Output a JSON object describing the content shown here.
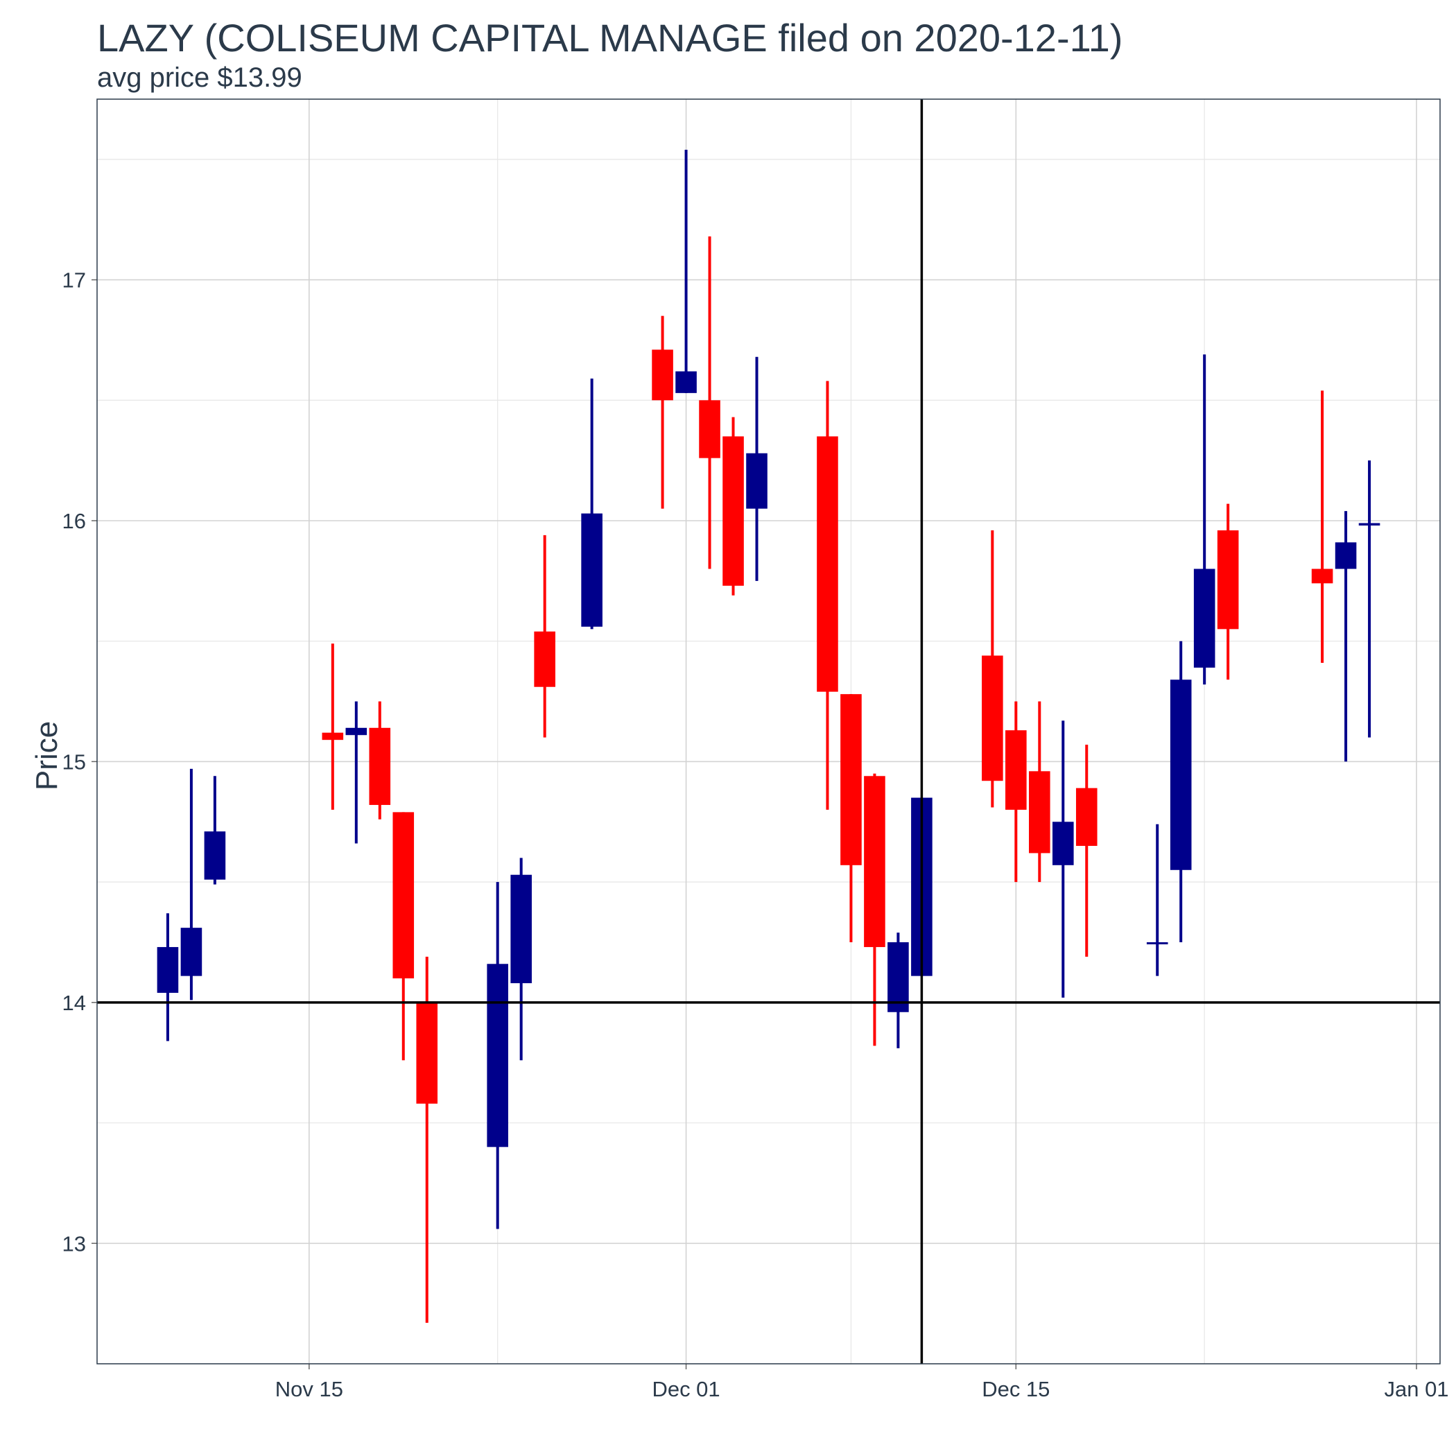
{
  "chart_data": {
    "type": "candlestick",
    "title": "LAZY (COLISEUM CAPITAL MANAGE filed on 2020-12-11)",
    "subtitle": "avg price $13.99",
    "ylabel": "Price",
    "xlabel": "",
    "ylim": [
      12.5,
      17.75
    ],
    "xlim": [
      "2020-11-06",
      "2021-01-02"
    ],
    "y_ticks": [
      13,
      14,
      15,
      16,
      17
    ],
    "x_ticks": [
      {
        "date": "2020-11-15",
        "label": "Nov 15"
      },
      {
        "date": "2020-12-01",
        "label": "Dec 01"
      },
      {
        "date": "2020-12-15",
        "label": "Dec 15"
      },
      {
        "date": "2021-01-01",
        "label": "Jan 01"
      }
    ],
    "grid": true,
    "up_color": "#00008b",
    "down_color": "#ff0000",
    "reference_lines": {
      "horizontal_price": 14.0,
      "vertical_date": "2020-12-11",
      "color": "#000000"
    },
    "candles": [
      {
        "date": "2020-11-09",
        "open": 14.04,
        "high": 14.37,
        "low": 13.84,
        "close": 14.23
      },
      {
        "date": "2020-11-10",
        "open": 14.11,
        "high": 14.97,
        "low": 14.01,
        "close": 14.31
      },
      {
        "date": "2020-11-11",
        "open": 14.51,
        "high": 14.94,
        "low": 14.49,
        "close": 14.71
      },
      {
        "date": "2020-11-16",
        "open": 15.12,
        "high": 15.49,
        "low": 14.8,
        "close": 15.09
      },
      {
        "date": "2020-11-17",
        "open": 15.11,
        "high": 15.25,
        "low": 14.66,
        "close": 15.14
      },
      {
        "date": "2020-11-18",
        "open": 15.14,
        "high": 15.25,
        "low": 14.76,
        "close": 14.82
      },
      {
        "date": "2020-11-19",
        "open": 14.79,
        "high": 14.79,
        "low": 13.76,
        "close": 14.1
      },
      {
        "date": "2020-11-20",
        "open": 14.0,
        "high": 14.19,
        "low": 12.67,
        "close": 13.58
      },
      {
        "date": "2020-11-23",
        "open": 13.4,
        "high": 14.5,
        "low": 13.06,
        "close": 14.16
      },
      {
        "date": "2020-11-24",
        "open": 14.08,
        "high": 14.6,
        "low": 13.76,
        "close": 14.53
      },
      {
        "date": "2020-11-25",
        "open": 15.54,
        "high": 15.94,
        "low": 15.1,
        "close": 15.31
      },
      {
        "date": "2020-11-27",
        "open": 15.56,
        "high": 16.59,
        "low": 15.55,
        "close": 16.03
      },
      {
        "date": "2020-11-30",
        "open": 16.71,
        "high": 16.85,
        "low": 16.05,
        "close": 16.5
      },
      {
        "date": "2020-12-01",
        "open": 16.53,
        "high": 17.54,
        "low": 16.53,
        "close": 16.62
      },
      {
        "date": "2020-12-02",
        "open": 16.5,
        "high": 17.18,
        "low": 15.8,
        "close": 16.26
      },
      {
        "date": "2020-12-03",
        "open": 16.35,
        "high": 16.43,
        "low": 15.69,
        "close": 15.73
      },
      {
        "date": "2020-12-04",
        "open": 16.05,
        "high": 16.68,
        "low": 15.75,
        "close": 16.28
      },
      {
        "date": "2020-12-07",
        "open": 16.35,
        "high": 16.58,
        "low": 14.8,
        "close": 15.29
      },
      {
        "date": "2020-12-08",
        "open": 15.28,
        "high": 15.28,
        "low": 14.25,
        "close": 14.57
      },
      {
        "date": "2020-12-09",
        "open": 14.94,
        "high": 14.95,
        "low": 13.82,
        "close": 14.23
      },
      {
        "date": "2020-12-10",
        "open": 13.96,
        "high": 14.29,
        "low": 13.81,
        "close": 14.25
      },
      {
        "date": "2020-12-11",
        "open": 14.11,
        "high": 14.85,
        "low": 14.11,
        "close": 14.85
      },
      {
        "date": "2020-12-14",
        "open": 15.44,
        "high": 15.96,
        "low": 14.81,
        "close": 14.92
      },
      {
        "date": "2020-12-15",
        "open": 15.13,
        "high": 15.25,
        "low": 14.5,
        "close": 14.8
      },
      {
        "date": "2020-12-16",
        "open": 14.96,
        "high": 15.25,
        "low": 14.5,
        "close": 14.62
      },
      {
        "date": "2020-12-17",
        "open": 14.57,
        "high": 15.17,
        "low": 14.02,
        "close": 14.75
      },
      {
        "date": "2020-12-18",
        "open": 14.89,
        "high": 15.07,
        "low": 14.19,
        "close": 14.65
      },
      {
        "date": "2020-12-21",
        "open": 14.25,
        "high": 14.74,
        "low": 14.11,
        "close": 14.25
      },
      {
        "date": "2020-12-22",
        "open": 14.55,
        "high": 15.5,
        "low": 14.25,
        "close": 15.34
      },
      {
        "date": "2020-12-23",
        "open": 15.39,
        "high": 16.69,
        "low": 15.32,
        "close": 15.8
      },
      {
        "date": "2020-12-24",
        "open": 15.96,
        "high": 16.07,
        "low": 15.34,
        "close": 15.55
      },
      {
        "date": "2020-12-28",
        "open": 15.8,
        "high": 16.54,
        "low": 15.41,
        "close": 15.74
      },
      {
        "date": "2020-12-29",
        "open": 15.8,
        "high": 16.04,
        "low": 15.0,
        "close": 15.91
      },
      {
        "date": "2020-12-30",
        "open": 15.98,
        "high": 16.25,
        "low": 15.1,
        "close": 15.99
      }
    ]
  }
}
